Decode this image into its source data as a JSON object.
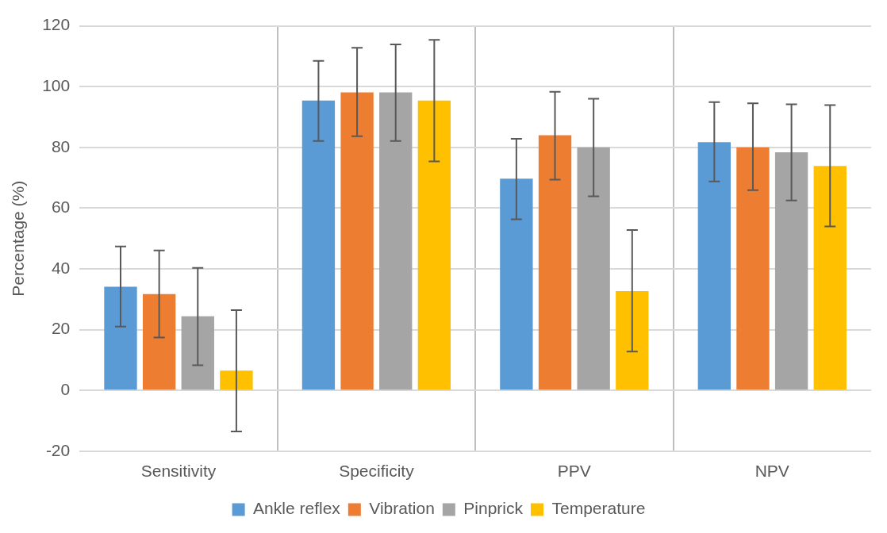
{
  "chart_data": {
    "type": "bar",
    "ylabel": "Percentage (%)",
    "categories": [
      "Sensitivity",
      "Specificity",
      "PPV",
      "NPV"
    ],
    "series": [
      {
        "name": "Ankle reflex",
        "color": "#5b9bd5",
        "values": [
          34.1,
          95.4,
          69.7,
          81.7
        ],
        "errors": [
          [
            21.0,
            47.4
          ],
          [
            82.1,
            108.5
          ],
          [
            56.3,
            82.8
          ],
          [
            68.8,
            94.9
          ]
        ]
      },
      {
        "name": "Vibration",
        "color": "#ed7d31",
        "values": [
          31.7,
          98.1,
          84.0,
          80.0
        ],
        "errors": [
          [
            17.4,
            46.1
          ],
          [
            83.7,
            112.8
          ],
          [
            69.4,
            98.3
          ],
          [
            65.9,
            94.5
          ]
        ]
      },
      {
        "name": "Pinprick",
        "color": "#a5a5a5",
        "values": [
          24.4,
          98.1,
          80.0,
          78.4
        ],
        "errors": [
          [
            8.3,
            40.3
          ],
          [
            82.1,
            113.9
          ],
          [
            63.9,
            96.0
          ],
          [
            62.5,
            94.2
          ]
        ]
      },
      {
        "name": "Temperature",
        "color": "#ffc000",
        "values": [
          6.5,
          95.4,
          32.7,
          73.9
        ],
        "errors": [
          [
            -13.5,
            26.4
          ],
          [
            75.4,
            115.4
          ],
          [
            12.8,
            52.8
          ],
          [
            54.0,
            93.9
          ]
        ]
      }
    ],
    "ylim": [
      -20,
      120
    ],
    "yticks": [
      -20,
      0,
      20,
      40,
      60,
      80,
      100,
      120
    ],
    "grid": true,
    "legend": "bottom"
  }
}
